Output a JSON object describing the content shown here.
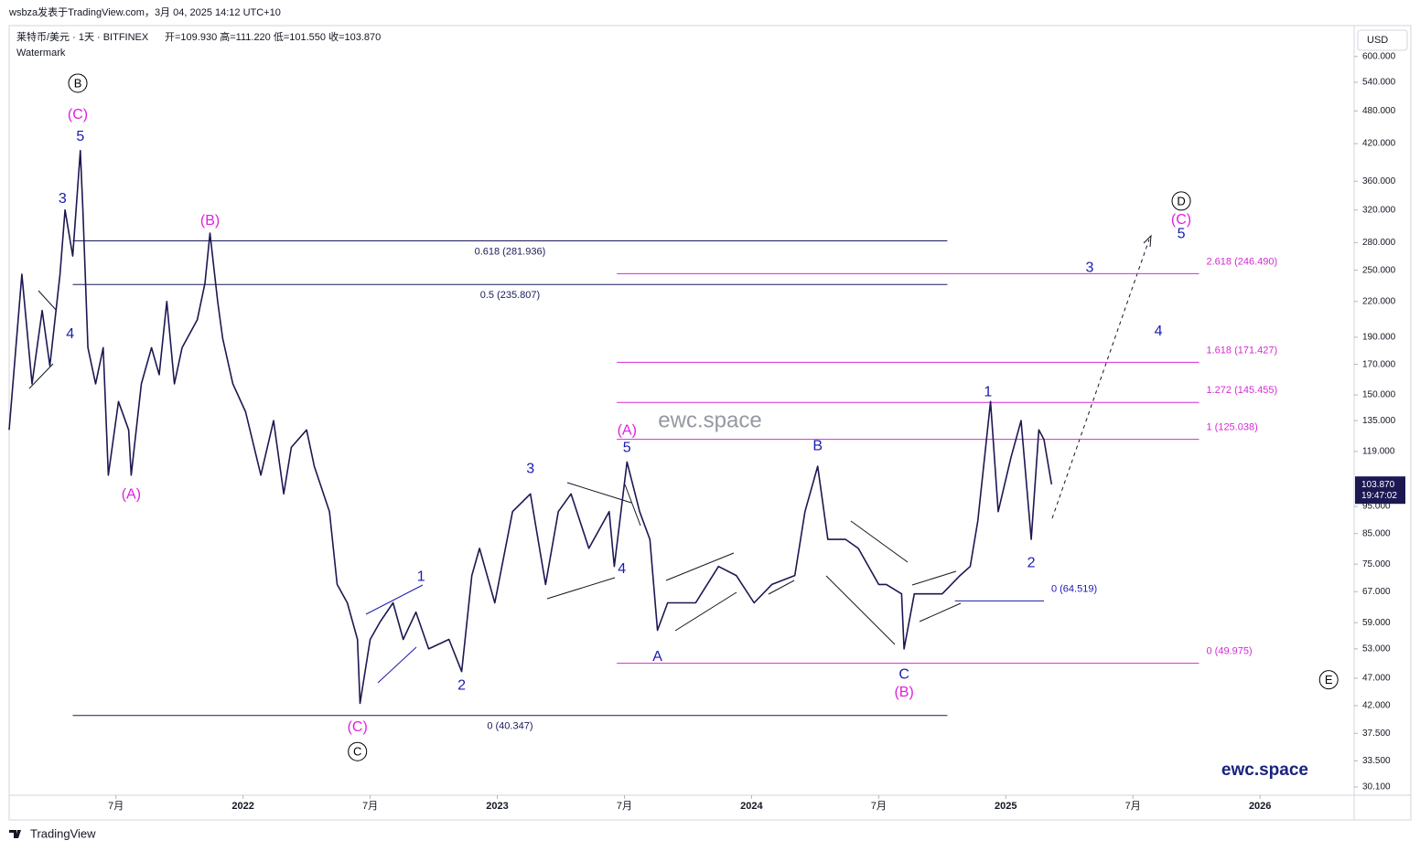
{
  "header": {
    "caption": "wsbza发表于TradingView.com，3月 04, 2025 14:12 UTC+10",
    "symbol": "莱特币/美元 · 1天 · BITFINEX",
    "ohlc": "开=109.930  高=111.220  低=101.550  收=103.870",
    "watermark": "Watermark",
    "currency": "USD"
  },
  "chart_data": {
    "type": "line",
    "log_scale": true,
    "grid": false,
    "xlim": [
      2021.08,
      2026.37
    ],
    "ylim": [
      29.1,
      676
    ],
    "xticks": [
      {
        "value": 2021.5,
        "label": "7月"
      },
      2022,
      {
        "value": 2022.5,
        "label": "7月"
      },
      2023,
      {
        "value": 2023.5,
        "label": "7月"
      },
      2024,
      {
        "value": 2024.5,
        "label": "7月"
      },
      2025,
      {
        "value": 2025.5,
        "label": "7月"
      },
      2026
    ],
    "yticks": [
      {
        "value": 600,
        "label": "600.000"
      },
      {
        "value": 540,
        "label": "540.000"
      },
      {
        "value": 480,
        "label": "480.000"
      },
      {
        "value": 420,
        "label": "420.000"
      },
      {
        "value": 360,
        "label": "360.000"
      },
      {
        "value": 320,
        "label": "320.000"
      },
      {
        "value": 280,
        "label": "280.000"
      },
      {
        "value": 250,
        "label": "250.000"
      },
      {
        "value": 220,
        "label": "220.000"
      },
      {
        "value": 190,
        "label": "190.000"
      },
      {
        "value": 170,
        "label": "170.000"
      },
      {
        "value": 150,
        "label": "150.000"
      },
      {
        "value": 135,
        "label": "135.000"
      },
      {
        "value": 119,
        "label": "119.000"
      },
      {
        "value": 95,
        "label": "95.000"
      },
      {
        "value": 85,
        "label": "85.000"
      },
      {
        "value": 75,
        "label": "75.000"
      },
      {
        "value": 67,
        "label": "67.000"
      },
      {
        "value": 59,
        "label": "59.000"
      },
      {
        "value": 53,
        "label": "53.000"
      },
      {
        "value": 47,
        "label": "47.000"
      },
      {
        "value": 42,
        "label": "42.000"
      },
      {
        "value": 37.5,
        "label": "37.500"
      },
      {
        "value": 33.5,
        "label": "33.500"
      },
      {
        "value": 30.1,
        "label": "30.100"
      }
    ],
    "x": [
      2021.08,
      2021.13,
      2021.17,
      2021.21,
      2021.24,
      2021.28,
      2021.3,
      2021.33,
      2021.36,
      2021.37,
      2021.39,
      2021.42,
      2021.45,
      2021.47,
      2021.51,
      2021.55,
      2021.56,
      2021.6,
      2021.64,
      2021.67,
      2021.7,
      2021.73,
      2021.76,
      2021.82,
      2021.85,
      2021.87,
      2021.9,
      2021.92,
      2021.96,
      2022.01,
      2022.07,
      2022.12,
      2022.16,
      2022.19,
      2022.25,
      2022.28,
      2022.34,
      2022.37,
      2022.41,
      2022.45,
      2022.46,
      2022.5,
      2022.54,
      2022.59,
      2022.63,
      2022.68,
      2022.73,
      2022.81,
      2022.86,
      2022.9,
      2022.93,
      2022.99,
      2023.06,
      2023.13,
      2023.19,
      2023.24,
      2023.29,
      2023.36,
      2023.44,
      2023.46,
      2023.51,
      2023.56,
      2023.6,
      2023.63,
      2023.67,
      2023.78,
      2023.87,
      2023.94,
      2024.01,
      2024.08,
      2024.17,
      2024.21,
      2024.26,
      2024.3,
      2024.37,
      2024.42,
      2024.5,
      2024.53,
      2024.59,
      2024.6,
      2024.64,
      2024.75,
      2024.82,
      2024.86,
      2024.89,
      2024.94,
      2024.97,
      2025.02,
      2025.06,
      2025.1,
      2025.13,
      2025.15,
      2025.18
    ],
    "series": [
      {
        "name": "莱特币/美元",
        "color": "#1c1852",
        "values": [
          130,
          246,
          157,
          212,
          169,
          246,
          320,
          265,
          408,
          320,
          182,
          157,
          182,
          108,
          146,
          130,
          108,
          157,
          182,
          163,
          220,
          157,
          182,
          204,
          237,
          291,
          220,
          189,
          157,
          140,
          108,
          135,
          100,
          121,
          130,
          112,
          93,
          69,
          64,
          55.1,
          42.4,
          55.1,
          59.3,
          64,
          55.1,
          61.6,
          53,
          55.1,
          48.3,
          71.6,
          80,
          64,
          93,
          100,
          69,
          93,
          100,
          80,
          93,
          74.3,
          114,
          93,
          83,
          57.2,
          64,
          64,
          74.3,
          71.6,
          64,
          69,
          71.6,
          93,
          112,
          83,
          83,
          80,
          69,
          69,
          66.4,
          53,
          66.4,
          66.4,
          71.6,
          74.3,
          89.5,
          146,
          93,
          116,
          135,
          83,
          130,
          125,
          104
        ]
      }
    ],
    "last_price": {
      "value": 103.87,
      "label": "103.870"
    },
    "countdown": "19:47:02",
    "levels": [
      {
        "value": 281.936,
        "label": "0.618 (281.936)",
        "x": [
          2021.33,
          2024.77
        ],
        "color": "#1a1a5e",
        "label_side": "center"
      },
      {
        "value": 235.807,
        "label": "0.5 (235.807)",
        "x": [
          2021.33,
          2024.77
        ],
        "color": "#1a1a5e",
        "label_side": "center"
      },
      {
        "value": 40.347,
        "label": "0 (40.347)",
        "x": [
          2021.33,
          2024.77
        ],
        "color": "#1a1a5e",
        "label_side": "center"
      },
      {
        "value": 246.49,
        "label": "2.618 (246.490)",
        "x": [
          2023.47,
          2025.76
        ],
        "color": "#d62ad6",
        "label_side": "right"
      },
      {
        "value": 171.427,
        "label": "1.618 (171.427)",
        "x": [
          2023.47,
          2025.76
        ],
        "color": "#d62ad6",
        "label_side": "right"
      },
      {
        "value": 145.455,
        "label": "1.272 (145.455)",
        "x": [
          2023.47,
          2025.76
        ],
        "color": "#d62ad6",
        "label_side": "right"
      },
      {
        "value": 125.038,
        "label": "1 (125.038)",
        "x": [
          2023.47,
          2025.76
        ],
        "color": "#d62ad6",
        "label_side": "right"
      },
      {
        "value": 49.975,
        "label": "0 (49.975)",
        "x": [
          2023.47,
          2025.76
        ],
        "color": "#d62ad6",
        "label_side": "right"
      },
      {
        "value": 64.519,
        "label": "0 (64.519)",
        "x": [
          2024.8,
          2025.15
        ],
        "color": "#1a1ab0",
        "label_side": "right"
      }
    ],
    "annotations": [
      {
        "text": "B",
        "x": 2021.35,
        "y": 538,
        "color": "#000000",
        "circle": true
      },
      {
        "text": "(C)",
        "x": 2021.35,
        "y": 474,
        "color": "#e020e0",
        "circle": false
      },
      {
        "text": "5",
        "x": 2021.36,
        "y": 433,
        "color": "#1a1ab0",
        "circle": false
      },
      {
        "text": "3",
        "x": 2021.29,
        "y": 336,
        "color": "#1a1ab0",
        "circle": false
      },
      {
        "text": "4",
        "x": 2021.32,
        "y": 193,
        "color": "#1a1ab0",
        "circle": false
      },
      {
        "text": "(B)",
        "x": 2021.87,
        "y": 307,
        "color": "#e020e0",
        "circle": false
      },
      {
        "text": "(A)",
        "x": 2021.56,
        "y": 100,
        "color": "#e020e0",
        "circle": false
      },
      {
        "text": "(C)",
        "x": 2022.45,
        "y": 38.6,
        "color": "#e020e0",
        "circle": false
      },
      {
        "text": "C",
        "x": 2022.45,
        "y": 34.8,
        "color": "#000000",
        "circle": true
      },
      {
        "text": "1",
        "x": 2022.7,
        "y": 71.4,
        "color": "#1a1ab0",
        "circle": false
      },
      {
        "text": "2",
        "x": 2022.86,
        "y": 45.7,
        "color": "#1a1ab0",
        "circle": false
      },
      {
        "text": "3",
        "x": 2023.13,
        "y": 111,
        "color": "#1a1ab0",
        "circle": false
      },
      {
        "text": "4",
        "x": 2023.49,
        "y": 73.7,
        "color": "#1a1ab0",
        "circle": false
      },
      {
        "text": "(A)",
        "x": 2023.51,
        "y": 130,
        "color": "#e020e0",
        "circle": false
      },
      {
        "text": "5",
        "x": 2023.51,
        "y": 121,
        "color": "#1a1ab0",
        "circle": false
      },
      {
        "text": "A",
        "x": 2023.63,
        "y": 51.5,
        "color": "#1a1ab0",
        "circle": false
      },
      {
        "text": "B",
        "x": 2024.26,
        "y": 122,
        "color": "#1a1ab0",
        "circle": false
      },
      {
        "text": "C",
        "x": 2024.6,
        "y": 47.8,
        "color": "#1a1ab0",
        "circle": false
      },
      {
        "text": "(B)",
        "x": 2024.6,
        "y": 44.5,
        "color": "#e020e0",
        "circle": false
      },
      {
        "text": "1",
        "x": 2024.93,
        "y": 152,
        "color": "#1a1ab0",
        "circle": false
      },
      {
        "text": "2",
        "x": 2025.1,
        "y": 75.6,
        "color": "#1a1ab0",
        "circle": false
      },
      {
        "text": "3",
        "x": 2025.33,
        "y": 253,
        "color": "#1a1ab0",
        "circle": false
      },
      {
        "text": "4",
        "x": 2025.6,
        "y": 195,
        "color": "#1a1ab0",
        "circle": false
      },
      {
        "text": "5",
        "x": 2025.69,
        "y": 291,
        "color": "#1a1ab0",
        "circle": false
      },
      {
        "text": "(C)",
        "x": 2025.69,
        "y": 308,
        "color": "#e020e0",
        "circle": false
      },
      {
        "text": "D",
        "x": 2025.69,
        "y": 332,
        "color": "#000000",
        "circle": true
      },
      {
        "text": "E",
        "x": 2026.27,
        "y": 46.7,
        "color": "#000000",
        "circle": true
      }
    ]
  },
  "watermark_center": "ewc.space",
  "brand": "ewc.space",
  "footer": "TradingView"
}
